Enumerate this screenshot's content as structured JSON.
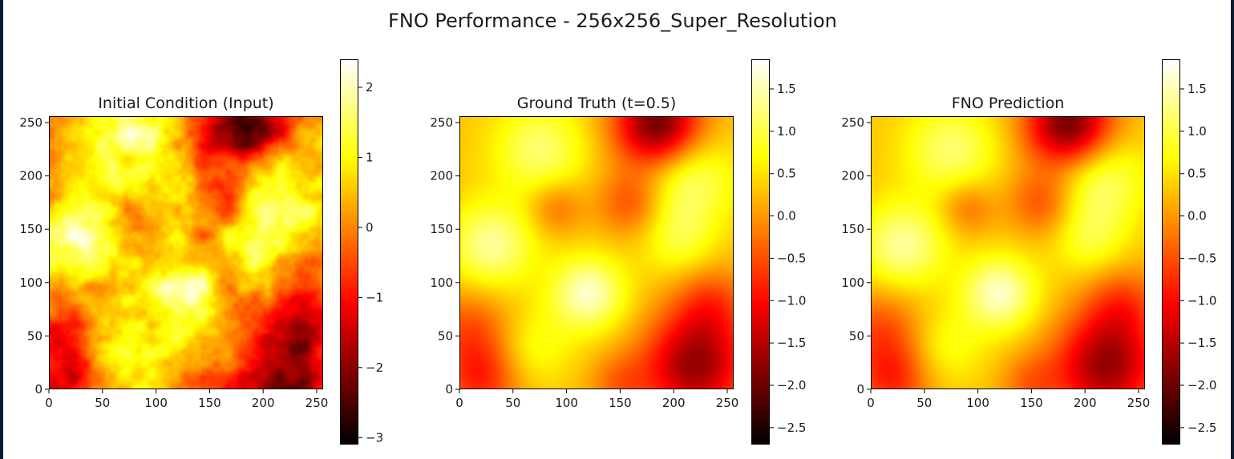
{
  "figure": {
    "title": "FNO Performance - 256x256_Super_Resolution"
  },
  "chart_data": [
    {
      "type": "heatmap",
      "title": "Initial Condition (Input)",
      "xlabel": "",
      "ylabel": "",
      "xlim": [
        0,
        256
      ],
      "ylim": [
        0,
        256
      ],
      "xticks": [
        "0",
        "50",
        "100",
        "150",
        "200",
        "250"
      ],
      "yticks": [
        "0",
        "50",
        "100",
        "150",
        "200",
        "250"
      ],
      "colormap": "hot",
      "colorbar": {
        "range": [
          -3.1,
          2.4
        ],
        "ticks": [
          2,
          1,
          0,
          -1,
          -2,
          -3
        ],
        "tick_labels": [
          "2",
          "1",
          "0",
          "−1",
          "−2",
          "−3"
        ]
      },
      "noise": 0.35,
      "sharpness": 2.0
    },
    {
      "type": "heatmap",
      "title": "Ground Truth (t=0.5)",
      "xlabel": "",
      "ylabel": "",
      "xlim": [
        0,
        256
      ],
      "ylim": [
        0,
        256
      ],
      "xticks": [
        "0",
        "50",
        "100",
        "150",
        "200",
        "250"
      ],
      "yticks": [
        "0",
        "50",
        "100",
        "150",
        "200",
        "250"
      ],
      "colormap": "hot",
      "colorbar": {
        "range": [
          -2.7,
          1.85
        ],
        "ticks": [
          1.5,
          1.0,
          0.5,
          0.0,
          -0.5,
          -1.0,
          -1.5,
          -2.0,
          -2.5
        ],
        "tick_labels": [
          "1.5",
          "1.0",
          "0.5",
          "0.0",
          "−0.5",
          "−1.0",
          "−1.5",
          "−2.0",
          "−2.5"
        ]
      },
      "noise": 0,
      "sharpness": 1.6
    },
    {
      "type": "heatmap",
      "title": "FNO Prediction",
      "xlabel": "",
      "ylabel": "",
      "xlim": [
        0,
        256
      ],
      "ylim": [
        0,
        256
      ],
      "xticks": [
        "0",
        "50",
        "100",
        "150",
        "200",
        "250"
      ],
      "yticks": [
        "0",
        "50",
        "100",
        "150",
        "200",
        "250"
      ],
      "colormap": "hot",
      "colorbar": {
        "range": [
          -2.7,
          1.85
        ],
        "ticks": [
          1.5,
          1.0,
          0.5,
          0.0,
          -0.5,
          -1.0,
          -1.5,
          -2.0,
          -2.5
        ],
        "tick_labels": [
          "1.5",
          "1.0",
          "0.5",
          "0.0",
          "−0.5",
          "−1.0",
          "−1.5",
          "−2.0",
          "−2.5"
        ]
      },
      "noise": 0,
      "sharpness": 1.6
    }
  ],
  "field_features": [
    {
      "x": 30,
      "y": 135,
      "amp": 1.1,
      "s": 28
    },
    {
      "x": 120,
      "y": 90,
      "amp": 1.3,
      "s": 24
    },
    {
      "x": 75,
      "y": 225,
      "amp": 0.9,
      "s": 30
    },
    {
      "x": 215,
      "y": 195,
      "amp": 0.9,
      "s": 30
    },
    {
      "x": 205,
      "y": 140,
      "amp": 0.6,
      "s": 24
    },
    {
      "x": 185,
      "y": 248,
      "amp": -2.3,
      "s": 28
    },
    {
      "x": 220,
      "y": 22,
      "amp": -2.0,
      "s": 34
    },
    {
      "x": 10,
      "y": 55,
      "amp": -0.8,
      "s": 28
    },
    {
      "x": 20,
      "y": 8,
      "amp": -1.0,
      "s": 25
    },
    {
      "x": 160,
      "y": 175,
      "amp": -0.8,
      "s": 22
    },
    {
      "x": 90,
      "y": 170,
      "amp": -0.6,
      "s": 18
    },
    {
      "x": 150,
      "y": 5,
      "amp": -0.6,
      "s": 20
    },
    {
      "x": 70,
      "y": 40,
      "amp": 0.5,
      "s": 25
    },
    {
      "x": 235,
      "y": 80,
      "amp": -0.8,
      "s": 25
    }
  ],
  "field_base": 0.3
}
